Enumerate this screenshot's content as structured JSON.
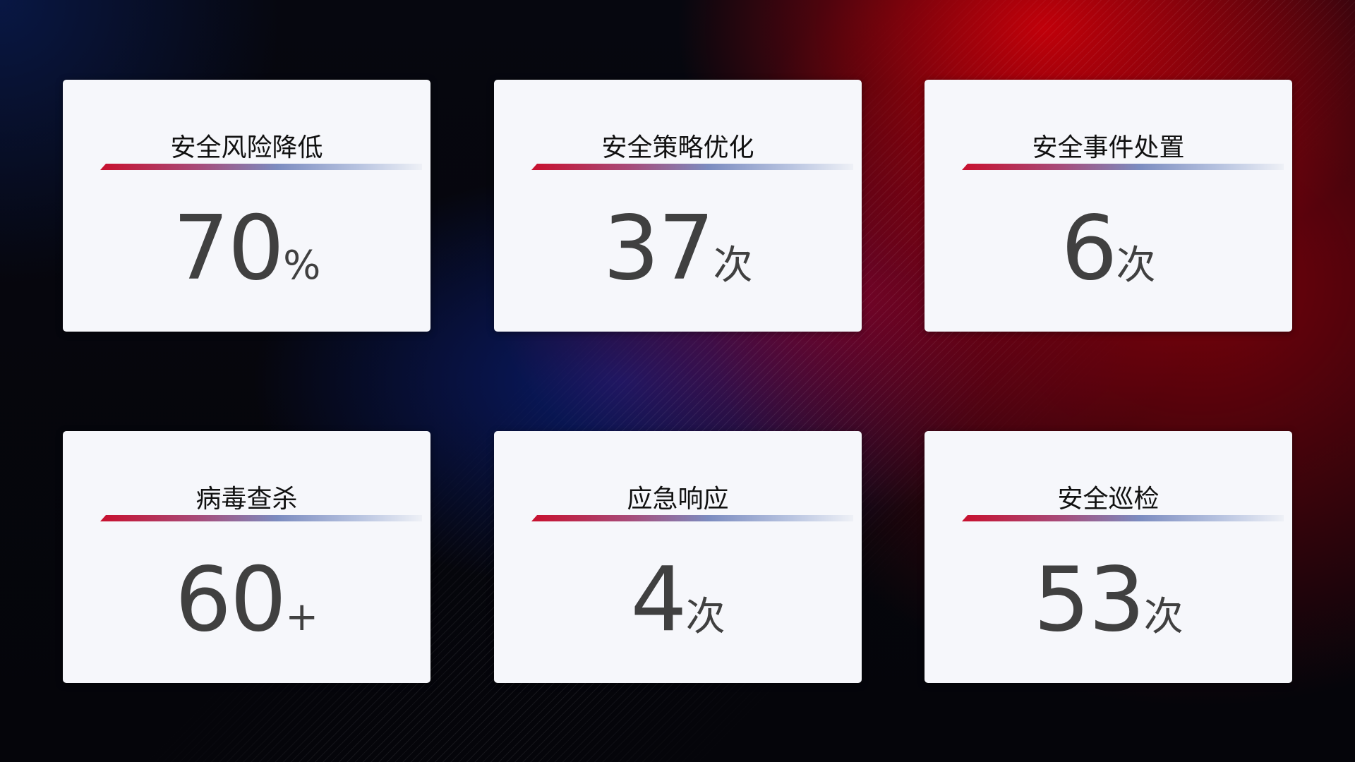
{
  "cards": [
    {
      "title": "安全风险降低",
      "value": "70",
      "unit": "%"
    },
    {
      "title": "安全策略优化",
      "value": "37",
      "unit": "次"
    },
    {
      "title": "安全事件处置",
      "value": "6",
      "unit": "次"
    },
    {
      "title": "病毒查杀",
      "value": "60",
      "unit": "+"
    },
    {
      "title": "应急响应",
      "value": "4",
      "unit": "次"
    },
    {
      "title": "安全巡检",
      "value": "53",
      "unit": "次"
    }
  ],
  "colors": {
    "accent_red": "#c8102e",
    "accent_blue": "#7c8cc0",
    "card_bg": "#f6f7fb",
    "value_text": "#404040"
  }
}
